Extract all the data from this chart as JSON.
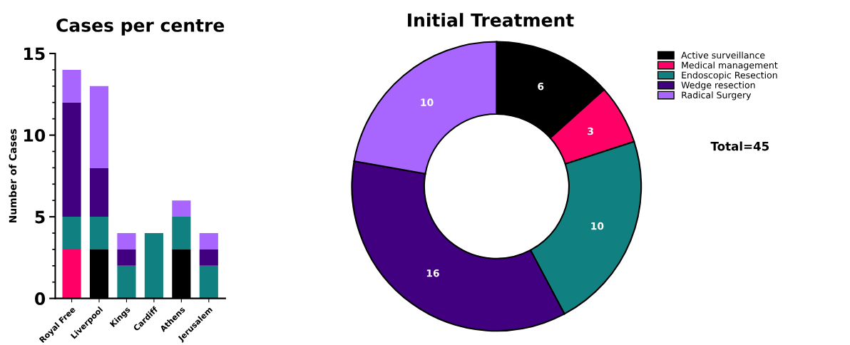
{
  "chart_data": [
    {
      "type": "bar",
      "title": "Cases per centre",
      "ylabel": "Number of Cases",
      "categories": [
        "Royal Free",
        "Liverpool",
        "Kings",
        "Cardiff",
        "Athens",
        "Jerusalem"
      ],
      "stacked": true,
      "ylim": [
        0,
        15
      ],
      "yticks": [
        0,
        5,
        10,
        15
      ],
      "grid": false,
      "legend": false,
      "series": [
        {
          "color": "#000000",
          "values": [
            0,
            3,
            0,
            0,
            3,
            0
          ]
        },
        {
          "color": "#ff0066",
          "values": [
            3,
            0,
            0,
            0,
            0,
            0
          ]
        },
        {
          "color": "#108080",
          "values": [
            2,
            2,
            2,
            4,
            2,
            2
          ]
        },
        {
          "color": "#400080",
          "values": [
            7,
            3,
            1,
            0,
            0,
            1
          ]
        },
        {
          "color": "#a866ff",
          "values": [
            2,
            5,
            1,
            0,
            1,
            1
          ]
        }
      ]
    },
    {
      "type": "donut",
      "title": "Initial Treatment",
      "categories": [
        "Active surveillance",
        "Medical management",
        "Endoscopic Resection",
        "Wedge resection",
        "Radical Surgery"
      ],
      "values": [
        6,
        3,
        10,
        16,
        10
      ],
      "colors": [
        "#000000",
        "#ff0066",
        "#108080",
        "#400080",
        "#a866ff"
      ],
      "data_labels": true,
      "legend": "top right",
      "annotations": [
        "Total=45"
      ]
    }
  ]
}
